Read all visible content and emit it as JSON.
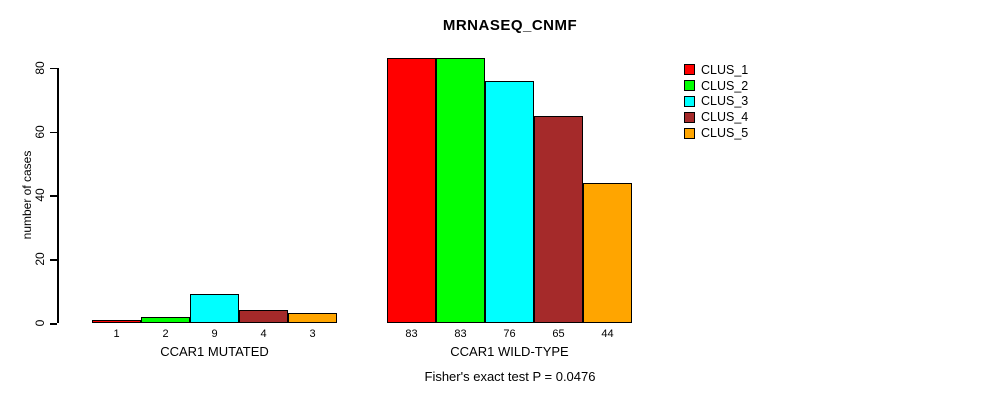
{
  "chart_data": {
    "type": "bar",
    "title": "MRNASEQ_CNMF",
    "ylabel": "number of cases",
    "xlabel": "",
    "ylim": [
      0,
      80
    ],
    "yticks": [
      0,
      20,
      40,
      60,
      80
    ],
    "grid": false,
    "legend_position": "top-right",
    "bar_value_labels": true,
    "categories": [
      "CCAR1 MUTATED",
      "CCAR1 WILD-TYPE"
    ],
    "series": [
      {
        "name": "CLUS_1",
        "color": "#FF0000",
        "values": [
          1,
          83
        ]
      },
      {
        "name": "CLUS_2",
        "color": "#00FF00",
        "values": [
          2,
          83
        ]
      },
      {
        "name": "CLUS_3",
        "color": "#00FFFF",
        "values": [
          9,
          76
        ]
      },
      {
        "name": "CLUS_4",
        "color": "#A52A2A",
        "values": [
          4,
          65
        ]
      },
      {
        "name": "CLUS_5",
        "color": "#FFA500",
        "values": [
          3,
          44
        ]
      }
    ],
    "footer": "Fisher's exact test P = 0.0476"
  }
}
